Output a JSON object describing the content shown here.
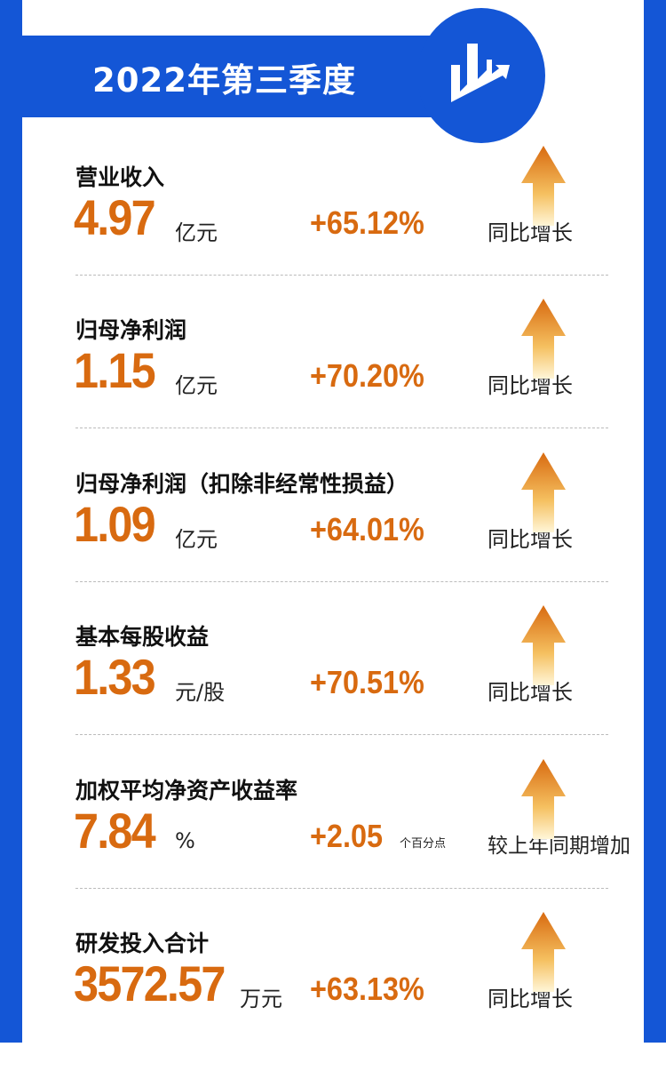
{
  "header": {
    "title": "2022年第三季度",
    "icon": "bar-chart-up-icon"
  },
  "colors": {
    "blue": "#1456d6",
    "orange": "#d86a10"
  },
  "metrics": [
    {
      "label": "营业收入",
      "value": "4.97",
      "unit": "亿元",
      "change": "+65.12%",
      "note": "同比增长"
    },
    {
      "label": "归母净利润",
      "value": "1.15",
      "unit": "亿元",
      "change": "+70.20%",
      "note": "同比增长"
    },
    {
      "label": "归母净利润（扣除非经常性损益）",
      "value": "1.09",
      "unit": "亿元",
      "change": "+64.01%",
      "note": "同比增长"
    },
    {
      "label": "基本每股收益",
      "value": "1.33",
      "unit": "元/股",
      "change": "+70.51%",
      "note": "同比增长"
    },
    {
      "label": "加权平均净资产收益率",
      "value": "7.84",
      "unit": "%",
      "change": "+2.05",
      "change_unit": "个百分点",
      "note": "较上年同期增加"
    },
    {
      "label": "研发投入合计",
      "value": "3572.57",
      "unit": "万元",
      "change": "+63.13%",
      "note": "同比增长"
    }
  ]
}
